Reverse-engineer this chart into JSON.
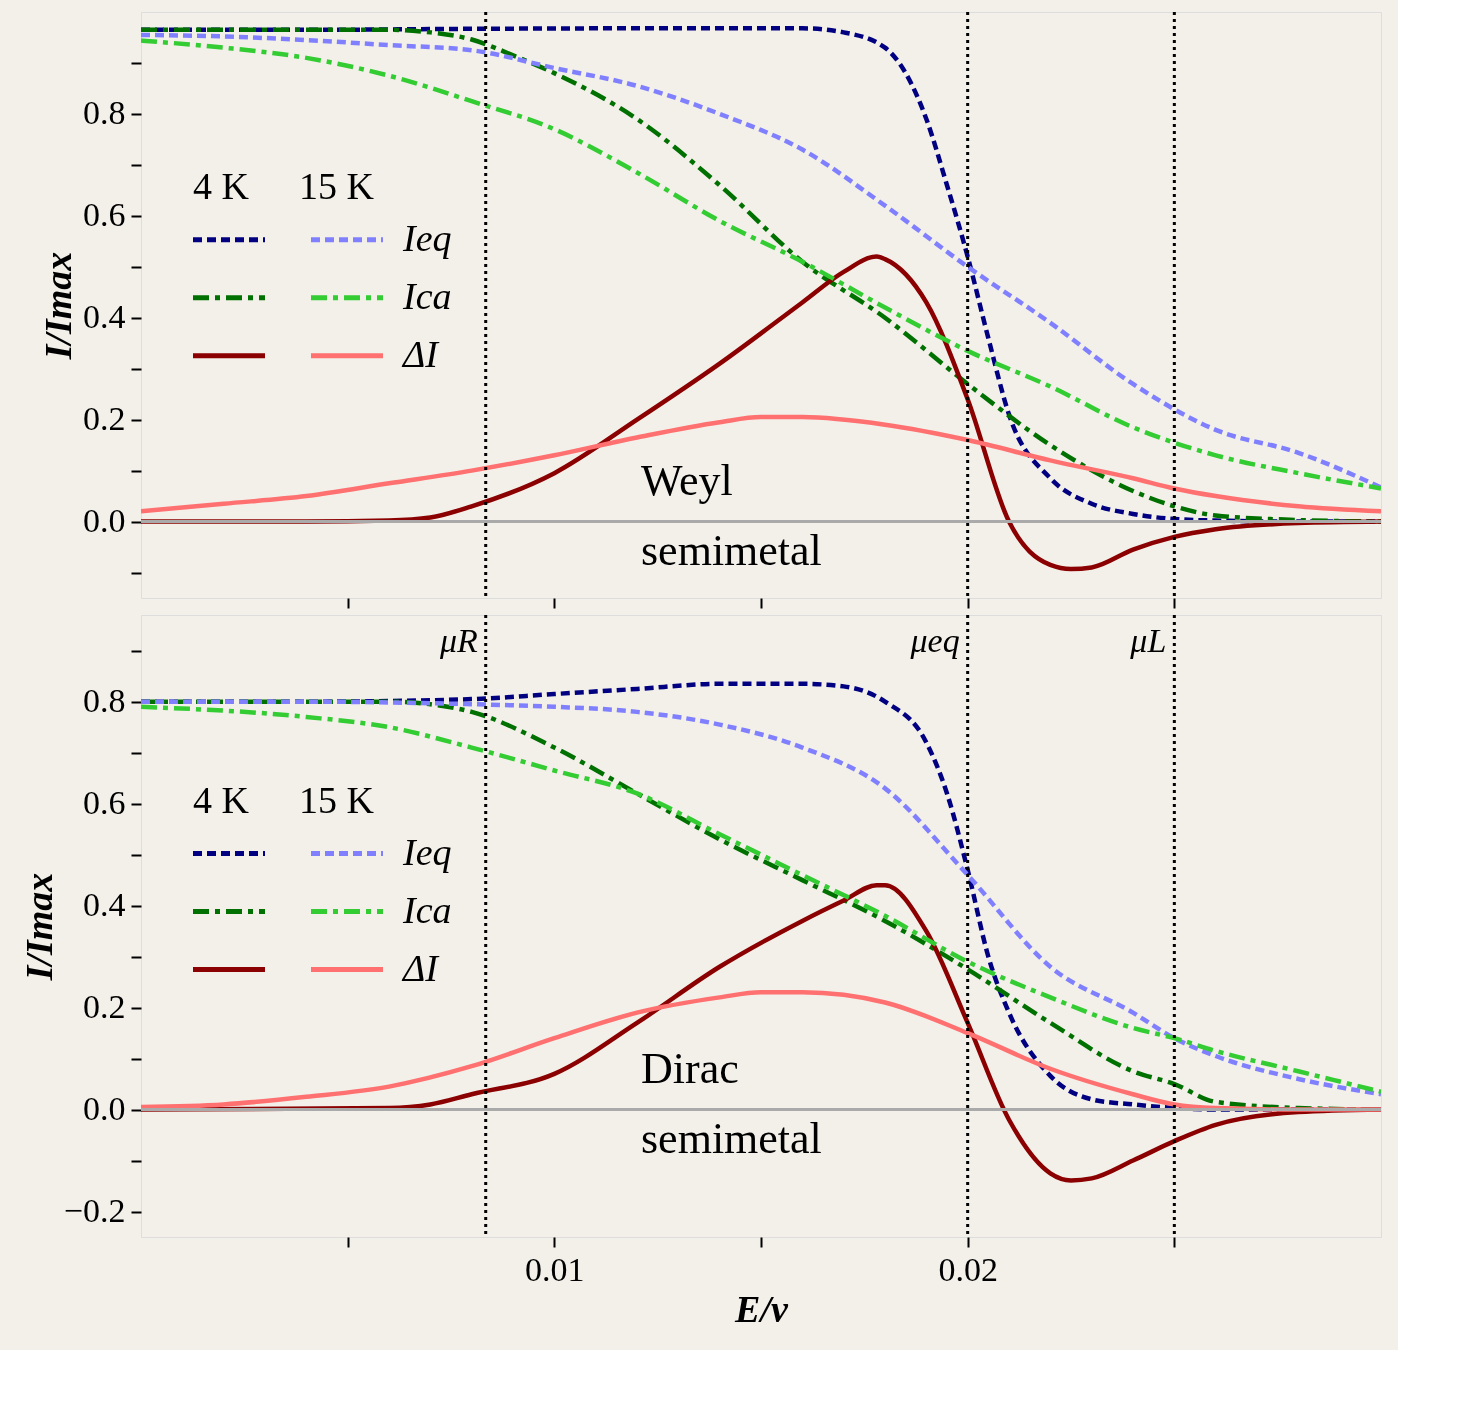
{
  "chart_data": [
    {
      "type": "line",
      "ylabel": "I/Imax",
      "xlim": [
        0,
        0.03
      ],
      "ylim": [
        -0.15,
        1.0
      ],
      "xticks": [
        {
          "value": 0.005,
          "label": null
        },
        {
          "value": 0.01,
          "label": null
        },
        {
          "value": 0.015,
          "label": null
        },
        {
          "value": 0.02,
          "label": null
        },
        {
          "value": 0.025,
          "label": null
        }
      ],
      "yticks": [
        {
          "value": -0.1,
          "label": null
        },
        {
          "value": 0,
          "label": "0.0"
        },
        {
          "value": 0.1,
          "label": null
        },
        0.2,
        {
          "value": 0.3,
          "label": null
        },
        0.4,
        {
          "value": 0.5,
          "label": null
        },
        0.6,
        {
          "value": 0.7,
          "label": null
        },
        0.8,
        {
          "value": 0.9,
          "label": null
        }
      ],
      "tick_labels": "y",
      "grid": false,
      "legend": "left",
      "annotations": [
        "4 K",
        "15 K",
        "Weyl semimetal"
      ],
      "ref_lines": [
        {
          "axis": "y",
          "value": 0,
          "label": null,
          "color": "#aaaaaa",
          "line_style": "solid"
        },
        {
          "axis": "x",
          "value": 0.00834,
          "label": null,
          "color": "#000000",
          "line_style": "dotted"
        },
        {
          "axis": "x",
          "value": 0.02,
          "label": null,
          "color": "#000000",
          "line_style": "dotted"
        },
        {
          "axis": "x",
          "value": 0.025,
          "label": null,
          "color": "#000000",
          "line_style": "dotted"
        }
      ],
      "series": [
        {
          "color": "#000080",
          "line_style": "dashed",
          "x": [
            0,
            0.004,
            0.008,
            0.012,
            0.016,
            0.017,
            0.018,
            0.019,
            0.0195,
            0.02,
            0.0205,
            0.021,
            0.022,
            0.023,
            0.024,
            0.025,
            0.026,
            0.028,
            0.03
          ],
          "values": [
            0.965,
            0.965,
            0.967,
            0.968,
            0.968,
            0.96,
            0.93,
            0.79,
            0.66,
            0.52,
            0.36,
            0.21,
            0.085,
            0.035,
            0.015,
            0.005,
            0.002,
            0,
            0
          ]
        },
        {
          "color": "#007000",
          "line_style": "dashdot",
          "x": [
            0,
            0.004,
            0.006,
            0.007,
            0.008,
            0.009,
            0.01,
            0.012,
            0.014,
            0.016,
            0.018,
            0.02,
            0.022,
            0.024,
            0.025,
            0.026,
            0.028,
            0.03
          ],
          "values": [
            0.965,
            0.965,
            0.965,
            0.96,
            0.946,
            0.915,
            0.88,
            0.79,
            0.66,
            0.51,
            0.4,
            0.27,
            0.15,
            0.06,
            0.03,
            0.012,
            0.003,
            0
          ]
        },
        {
          "color": "#8b0000",
          "line_style": "solid",
          "x": [
            0,
            0.004,
            0.006,
            0.007,
            0.008,
            0.01,
            0.012,
            0.014,
            0.016,
            0.017,
            0.0178,
            0.018,
            0.019,
            0.02,
            0.021,
            0.022,
            0.0225,
            0.023,
            0.024,
            0.025,
            0.026,
            0.028,
            0.03
          ],
          "values": [
            0,
            0,
            0.002,
            0.008,
            0.03,
            0.095,
            0.2,
            0.31,
            0.43,
            0.49,
            0.52,
            0.515,
            0.43,
            0.24,
            0.0,
            -0.085,
            -0.093,
            -0.09,
            -0.055,
            -0.03,
            -0.015,
            -0.003,
            0
          ]
        },
        {
          "name": "Ieq",
          "color": "#8080ff",
          "line_style": "dashed",
          "x": [
            0,
            0.002,
            0.004,
            0.006,
            0.008,
            0.01,
            0.012,
            0.014,
            0.016,
            0.018,
            0.02,
            0.022,
            0.024,
            0.026,
            0.028,
            0.03
          ],
          "values": [
            0.955,
            0.952,
            0.945,
            0.935,
            0.925,
            0.89,
            0.855,
            0.8,
            0.73,
            0.62,
            0.5,
            0.39,
            0.27,
            0.18,
            0.135,
            0.067
          ]
        },
        {
          "name": "Ica",
          "color": "#33cc33",
          "line_style": "dashdot",
          "x": [
            0,
            0.002,
            0.004,
            0.006,
            0.008,
            0.01,
            0.012,
            0.014,
            0.016,
            0.018,
            0.02,
            0.022,
            0.024,
            0.026,
            0.028,
            0.03
          ],
          "values": [
            0.944,
            0.93,
            0.91,
            0.875,
            0.825,
            0.77,
            0.685,
            0.59,
            0.51,
            0.42,
            0.335,
            0.265,
            0.185,
            0.13,
            0.095,
            0.065
          ]
        },
        {
          "name": "ΔI",
          "color": "#ff7070",
          "line_style": "solid",
          "x": [
            0,
            0.002,
            0.004,
            0.006,
            0.008,
            0.01,
            0.012,
            0.014,
            0.015,
            0.016,
            0.018,
            0.02,
            0.022,
            0.024,
            0.025,
            0.026,
            0.028,
            0.03
          ],
          "values": [
            0.02,
            0.035,
            0.05,
            0.075,
            0.1,
            0.13,
            0.165,
            0.195,
            0.205,
            0.205,
            0.19,
            0.16,
            0.12,
            0.085,
            0.065,
            0.05,
            0.03,
            0.02
          ]
        }
      ]
    },
    {
      "type": "line",
      "xlabel": "E/v",
      "ylabel": "I/Imax",
      "xlim": [
        0,
        0.03
      ],
      "ylim": [
        -0.25,
        0.97
      ],
      "xticks": [
        {
          "value": 0.005,
          "label": null
        },
        0.01,
        {
          "value": 0.015,
          "label": null
        },
        0.02,
        {
          "value": 0.025,
          "label": null
        }
      ],
      "yticks": [
        {
          "value": -0.2,
          "label": "−0.2"
        },
        {
          "value": -0.1,
          "label": null
        },
        {
          "value": 0,
          "label": "0.0"
        },
        {
          "value": 0.1,
          "label": null
        },
        0.2,
        {
          "value": 0.3,
          "label": null
        },
        0.4,
        {
          "value": 0.5,
          "label": null
        },
        0.6,
        {
          "value": 0.7,
          "label": null
        },
        0.8,
        {
          "value": 0.9,
          "label": null
        }
      ],
      "grid": false,
      "legend": "left",
      "annotations": [
        "4 K",
        "15 K",
        "Dirac semimetal"
      ],
      "ref_lines": [
        {
          "axis": "y",
          "value": 0,
          "label": null,
          "color": "#aaaaaa",
          "line_style": "solid"
        },
        {
          "axis": "x",
          "value": 0.00834,
          "label": "μR",
          "color": "#000000",
          "line_style": "dotted"
        },
        {
          "axis": "x",
          "value": 0.02,
          "label": "μeq",
          "color": "#000000",
          "line_style": "dotted"
        },
        {
          "axis": "x",
          "value": 0.025,
          "label": "μL",
          "color": "#000000",
          "line_style": "dotted"
        }
      ],
      "series": [
        {
          "color": "#000080",
          "line_style": "dashed",
          "x": [
            0,
            0.004,
            0.008,
            0.01,
            0.012,
            0.014,
            0.016,
            0.017,
            0.018,
            0.019,
            0.0195,
            0.02,
            0.0205,
            0.021,
            0.022,
            0.023,
            0.024,
            0.025,
            0.026,
            0.028,
            0.03
          ],
          "values": [
            0.8,
            0.8,
            0.805,
            0.815,
            0.825,
            0.835,
            0.835,
            0.83,
            0.8,
            0.72,
            0.62,
            0.47,
            0.3,
            0.19,
            0.066,
            0.02,
            0.01,
            0.003,
            0,
            0,
            0
          ]
        },
        {
          "color": "#007000",
          "line_style": "dashdot",
          "x": [
            0,
            0.006,
            0.007,
            0.008,
            0.01,
            0.012,
            0.014,
            0.016,
            0.018,
            0.02,
            0.022,
            0.024,
            0.025,
            0.026,
            0.028,
            0.03
          ],
          "values": [
            0.8,
            0.8,
            0.795,
            0.78,
            0.71,
            0.62,
            0.53,
            0.45,
            0.37,
            0.275,
            0.17,
            0.075,
            0.05,
            0.015,
            0.003,
            0
          ]
        },
        {
          "color": "#8b0000",
          "line_style": "solid",
          "x": [
            0,
            0.006,
            0.007,
            0.008,
            0.01,
            0.012,
            0.014,
            0.016,
            0.017,
            0.0178,
            0.018,
            0.019,
            0.02,
            0.021,
            0.022,
            0.0225,
            0.023,
            0.024,
            0.025,
            0.026,
            0.028,
            0.03
          ],
          "values": [
            0,
            0.003,
            0.01,
            0.03,
            0.07,
            0.17,
            0.28,
            0.37,
            0.41,
            0.44,
            0.44,
            0.35,
            0.17,
            -0.02,
            -0.125,
            -0.139,
            -0.135,
            -0.1,
            -0.062,
            -0.03,
            -0.005,
            0
          ]
        },
        {
          "name": "Ieq",
          "color": "#8080ff",
          "line_style": "dashed",
          "x": [
            0,
            0.004,
            0.008,
            0.01,
            0.012,
            0.014,
            0.016,
            0.018,
            0.02,
            0.022,
            0.024,
            0.025,
            0.026,
            0.028,
            0.03
          ],
          "values": [
            0.8,
            0.8,
            0.795,
            0.79,
            0.78,
            0.755,
            0.71,
            0.63,
            0.46,
            0.28,
            0.19,
            0.14,
            0.105,
            0.06,
            0.03
          ]
        },
        {
          "name": "Ica",
          "color": "#33cc33",
          "line_style": "dashdot",
          "x": [
            0,
            0.004,
            0.006,
            0.008,
            0.01,
            0.012,
            0.014,
            0.016,
            0.018,
            0.02,
            0.022,
            0.024,
            0.025,
            0.026,
            0.028,
            0.03
          ],
          "values": [
            0.79,
            0.77,
            0.75,
            0.71,
            0.665,
            0.62,
            0.54,
            0.46,
            0.38,
            0.29,
            0.22,
            0.16,
            0.14,
            0.115,
            0.075,
            0.035
          ]
        },
        {
          "name": "ΔI",
          "color": "#ff7070",
          "line_style": "solid",
          "x": [
            0,
            0.002,
            0.004,
            0.006,
            0.008,
            0.01,
            0.012,
            0.014,
            0.015,
            0.016,
            0.018,
            0.02,
            0.022,
            0.024,
            0.025,
            0.026,
            0.028,
            0.03
          ],
          "values": [
            0.005,
            0.01,
            0.025,
            0.045,
            0.085,
            0.14,
            0.19,
            0.22,
            0.23,
            0.23,
            0.21,
            0.15,
            0.08,
            0.03,
            0.01,
            0.003,
            0,
            0
          ]
        }
      ]
    }
  ]
}
